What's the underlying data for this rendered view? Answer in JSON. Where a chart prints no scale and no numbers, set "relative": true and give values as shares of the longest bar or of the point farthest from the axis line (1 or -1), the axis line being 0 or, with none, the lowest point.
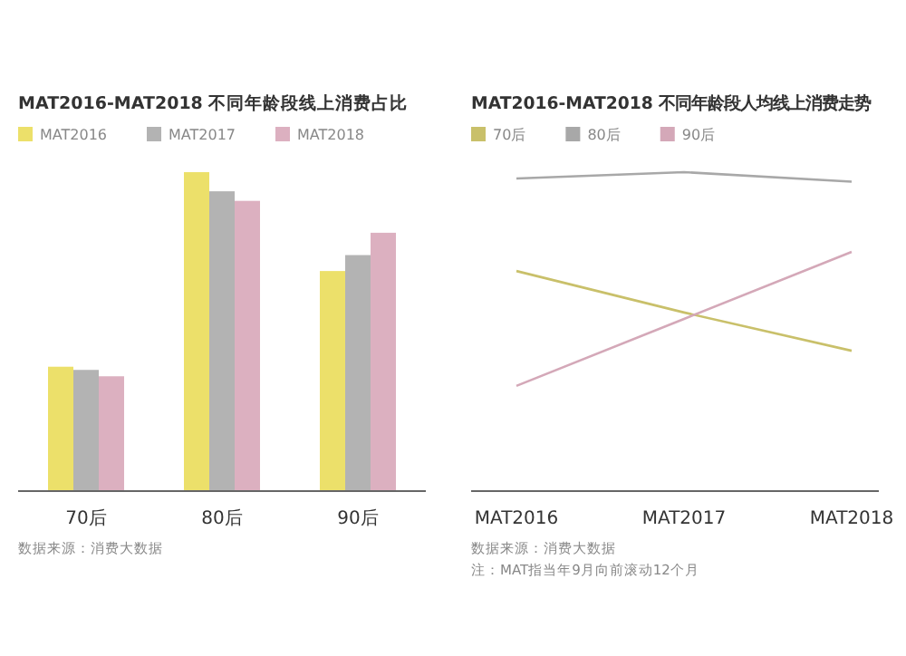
{
  "chart_data": [
    {
      "type": "bar",
      "title": "MAT2016-MAT2018 不同年龄段线上消费占比",
      "categories": [
        "70后",
        "80后",
        "90后"
      ],
      "relative": true,
      "legend": "top left",
      "series": [
        {
          "name": "MAT2016",
          "color": "#ece06a",
          "values": [
            0.39,
            1,
            0.69
          ]
        },
        {
          "name": "MAT2017",
          "color": "#b3b3b3",
          "values": [
            0.38,
            0.94,
            0.74
          ]
        },
        {
          "name": "MAT2018",
          "color": "#dcb0c0",
          "values": [
            0.36,
            0.91,
            0.81
          ]
        }
      ],
      "annotations": [
        "数据来源：消费大数据"
      ]
    },
    {
      "type": "line",
      "title": "MAT2016-MAT2018 不同年龄段人均线上消费走势",
      "categories": [
        "MAT2016",
        "MAT2017",
        "MAT2018"
      ],
      "relative": true,
      "legend": "top left",
      "series": [
        {
          "name": "70后",
          "color": "#c9c06a",
          "values": [
            0.69,
            0.56,
            0.44
          ]
        },
        {
          "name": "80后",
          "color": "#a8a8a8",
          "values": [
            0.98,
            1,
            0.97
          ]
        },
        {
          "name": "90后",
          "color": "#d4a8b8",
          "values": [
            0.33,
            0.54,
            0.75
          ]
        }
      ],
      "annotations": [
        "数据来源：消费大数据",
        "注：MAT指当年9月向前滚动12个月"
      ]
    }
  ]
}
